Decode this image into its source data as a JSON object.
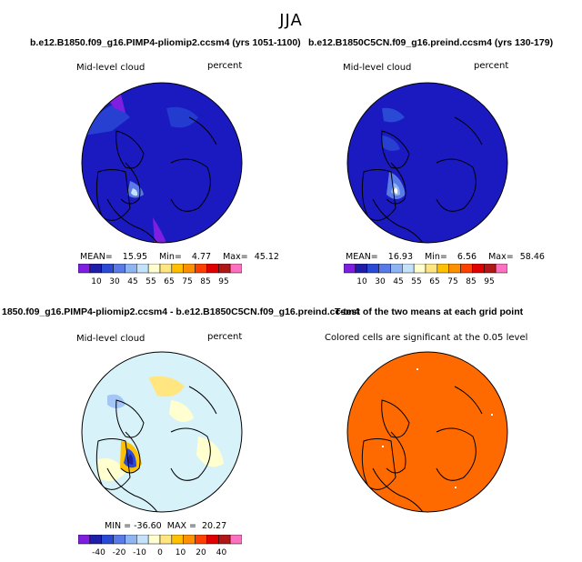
{
  "title": "JJA",
  "panels": [
    {
      "id": "case1",
      "title": "b.e12.B1850.f09_g16.PIMP4-pliomip2.ccsm4 (yrs 1051-1100)",
      "left_label": "Mid-level cloud",
      "right_label": "percent",
      "stats": {
        "mean_label": "MEAN=",
        "mean": "15.95",
        "min_label": "Min=",
        "min": "4.77",
        "max_label": "Max=",
        "max": "45.12"
      },
      "background": "#1a1ac0"
    },
    {
      "id": "case2",
      "title": "b.e12.B1850C5CN.f09_g16.preind.ccsm4 (yrs 130-179)",
      "left_label": "Mid-level cloud",
      "right_label": "percent",
      "stats": {
        "mean_label": "MEAN=",
        "mean": "16.93",
        "min_label": "Min=",
        "min": "6.56",
        "max_label": "Max=",
        "max": "58.46"
      },
      "background": "#1a1ac0"
    },
    {
      "id": "difference",
      "title": "1850.f09_g16.PIMP4-pliomip2.ccsm4 - b.e12.B1850C5CN.f09_g16.preind.ccsm4",
      "left_label": "Mid-level cloud",
      "right_label": "percent",
      "stats_text": "MIN = -36.60  MAX =  20.27",
      "background": "#d8f2fa"
    },
    {
      "id": "ttest",
      "title": "T-test of the two means at each grid point",
      "note": "Colored cells are significant at the 0.05 level",
      "background": "#ff6a00"
    }
  ],
  "colorbar_main": {
    "colors": [
      "#7d1ee0",
      "#1e1ea8",
      "#2a4ad6",
      "#5a7ae8",
      "#8fb4f4",
      "#c4e2fa",
      "#ffffd0",
      "#ffe680",
      "#ffc000",
      "#ff9000",
      "#ff4000",
      "#e00000",
      "#b01818",
      "#ff70c0"
    ],
    "labels": [
      "10",
      "30",
      "45",
      "55",
      "65",
      "75",
      "85",
      "95"
    ]
  },
  "colorbar_diff": {
    "colors": [
      "#7d1ee0",
      "#1e1ea8",
      "#2a4ad6",
      "#5a7ae8",
      "#8fb4f4",
      "#c4e2fa",
      "#ffffd0",
      "#ffe680",
      "#ffc000",
      "#ff9000",
      "#ff4000",
      "#e00000",
      "#b01818",
      "#ff70c0"
    ],
    "labels": [
      "-40",
      "-20",
      "-10",
      "0",
      "10",
      "20",
      "40"
    ]
  }
}
